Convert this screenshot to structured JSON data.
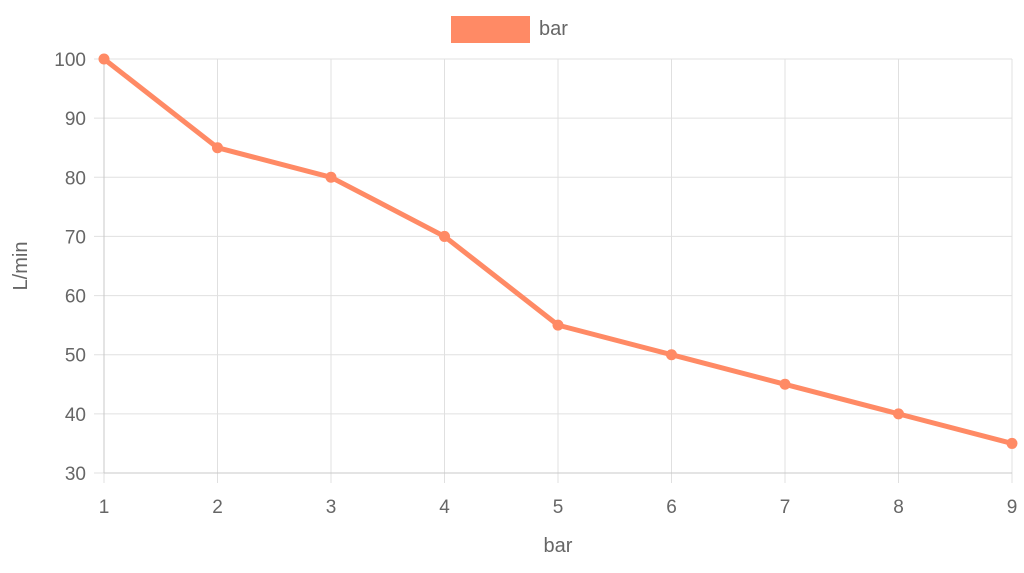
{
  "chart_data": {
    "type": "line",
    "x": [
      1,
      2,
      3,
      4,
      5,
      6,
      7,
      8,
      9
    ],
    "series": [
      {
        "name": "bar",
        "values": [
          100,
          85,
          80,
          70,
          55,
          50,
          45,
          40,
          35
        ],
        "color": "#ff8a65"
      }
    ],
    "xlabel": "bar",
    "ylabel": "L/min",
    "xlim": [
      1,
      9
    ],
    "ylim": [
      30,
      100
    ],
    "y_ticks": [
      30,
      40,
      50,
      60,
      70,
      80,
      90,
      100
    ],
    "x_ticks": [
      1,
      2,
      3,
      4,
      5,
      6,
      7,
      8,
      9
    ],
    "grid": true,
    "legend": "top-center",
    "colors": {
      "series": "#ff8a65",
      "grid": "#e0e0e0",
      "text": "#666666"
    }
  }
}
